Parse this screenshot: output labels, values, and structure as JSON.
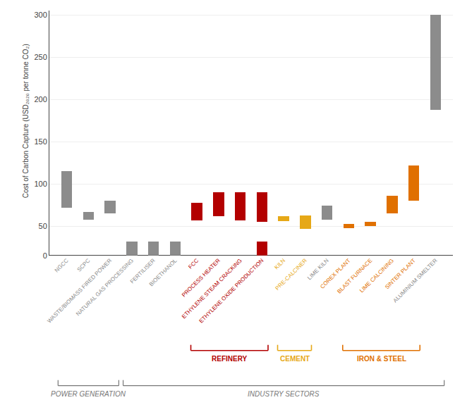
{
  "chart_data": {
    "type": "bar",
    "categories": [
      "NGCC",
      "SCPC",
      "WASTE/BIOMASS FIRED POWER",
      "NATURAL GAS PROCESSING",
      "FERTILISER",
      "BIOETHANOL",
      "FCC",
      "PROCESS HEATER",
      "ETHYLENE STEAM CRACKING",
      "ETHYLENE OXIDE PRODUCTION",
      "KILN",
      "PRE-CALCINER",
      "LIME KILN",
      "COREX PLANT",
      "BLAST FURNACE",
      "LIME CALCINING",
      "SINTER PLANT",
      "ALUMINIUM SMELTER"
    ],
    "colors": [
      "#8c8c8c",
      "#8c8c8c",
      "#8c8c8c",
      "#8c8c8c",
      "#8c8c8c",
      "#8c8c8c",
      "#b30000",
      "#b30000",
      "#b30000",
      "#b30000",
      "#e6a817",
      "#e6a817",
      "#8c8c8c",
      "#e07000",
      "#e07000",
      "#e07000",
      "#e07000",
      "#8c8c8c"
    ],
    "low": [
      72,
      58,
      65,
      null,
      null,
      null,
      57,
      62,
      57,
      55,
      56,
      47,
      58,
      48,
      50,
      65,
      80,
      188
    ],
    "high": [
      115,
      67,
      80,
      null,
      null,
      null,
      78,
      90,
      90,
      90,
      62,
      63,
      74,
      53,
      55,
      86,
      122,
      300
    ],
    "small_low": [
      null,
      null,
      null,
      0,
      0,
      0,
      null,
      null,
      null,
      0,
      null,
      null,
      null,
      null,
      null,
      null,
      null,
      null
    ],
    "small_high": [
      null,
      null,
      null,
      8,
      8,
      8,
      null,
      null,
      null,
      8,
      null,
      null,
      null,
      null,
      null,
      null,
      null,
      null
    ],
    "ylabel": "Cost of Carbon Capture (USD₂₀₂₀ per tonne CO₂)",
    "ylim": [
      44,
      305
    ],
    "yticks": [
      50,
      100,
      150,
      200,
      250,
      300
    ],
    "y2lim": [
      0,
      14
    ],
    "y2ticks": [
      0
    ],
    "grid": true,
    "subsectors": [
      {
        "label": "REFINERY",
        "color": "#b30000",
        "from": "FCC",
        "to": "ETHYLENE OXIDE PRODUCTION"
      },
      {
        "label": "CEMENT",
        "color": "#e6a817",
        "from": "KILN",
        "to": "PRE-CALCINER"
      },
      {
        "label": "IRON & STEEL",
        "color": "#e07000",
        "from": "COREX PLANT",
        "to": "SINTER PLANT"
      }
    ],
    "sectors": [
      {
        "label": "POWER GENERATION",
        "color": "#777777",
        "from": "NGCC",
        "to": "WASTE/BIOMASS FIRED POWER"
      },
      {
        "label": "INDUSTRY SECTORS",
        "color": "#777777",
        "from": "NATURAL GAS PROCESSING",
        "to": "ALUMINIUM SMELTER"
      }
    ]
  }
}
